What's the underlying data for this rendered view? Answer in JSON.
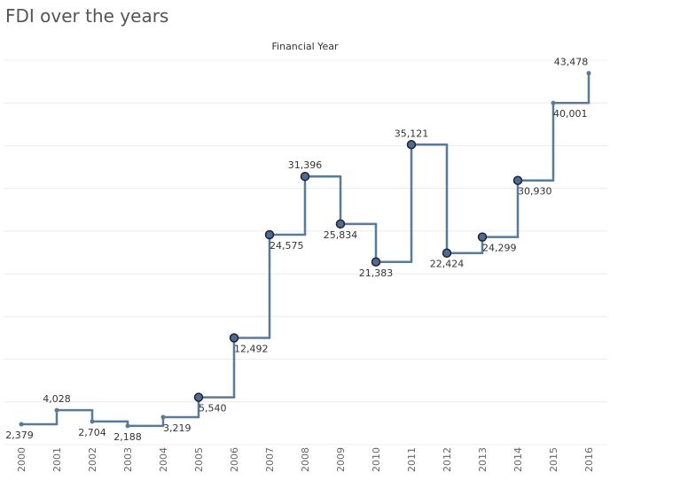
{
  "title": "FDI over the years",
  "chart_data": {
    "type": "line",
    "step": true,
    "header": "Financial Year",
    "categories": [
      "2000",
      "2001",
      "2002",
      "2003",
      "2004",
      "2005",
      "2006",
      "2007",
      "2008",
      "2009",
      "2010",
      "2011",
      "2012",
      "2013",
      "2014",
      "2015",
      "2016"
    ],
    "values": [
      2379,
      4028,
      2704,
      2188,
      3219,
      5540,
      12492,
      24575,
      31396,
      25834,
      21383,
      35121,
      22424,
      24299,
      30930,
      40001,
      43478
    ],
    "labels": [
      "2,379",
      "4,028",
      "2,704",
      "2,188",
      "3,219",
      "5,540",
      "12,492",
      "24,575",
      "31,396",
      "25,834",
      "21,383",
      "35,121",
      "22,424",
      "24,299",
      "30,930",
      "40,001",
      "43,478"
    ],
    "highlighted": [
      false,
      false,
      false,
      false,
      false,
      true,
      true,
      true,
      true,
      true,
      true,
      true,
      true,
      true,
      true,
      false,
      false
    ],
    "ylim": [
      0,
      45000
    ],
    "grid": true,
    "colors": {
      "line": "#5b7a99",
      "highlight": "#4f6b8f",
      "outline": "#222233"
    }
  }
}
